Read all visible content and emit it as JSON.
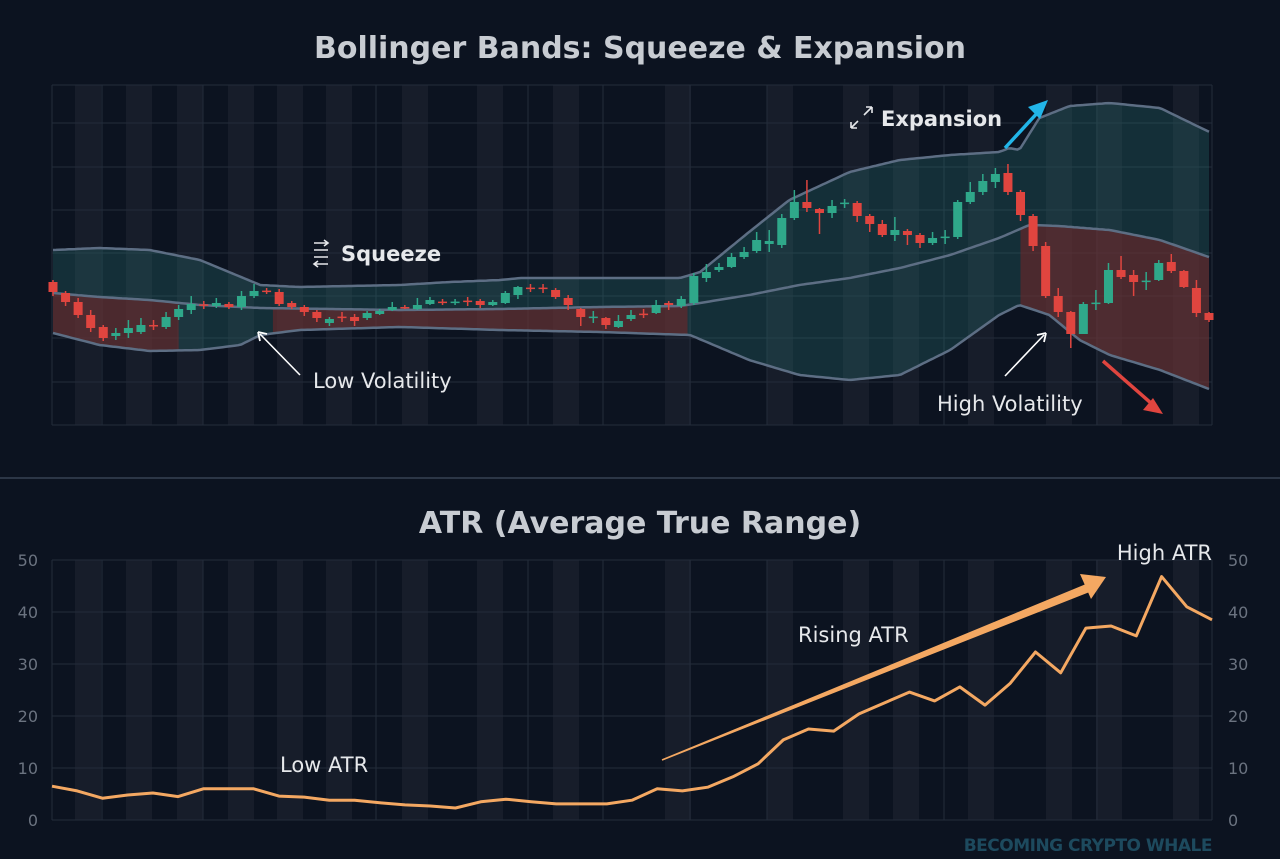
{
  "colors": {
    "background": "#0c1320",
    "bull": "#2fa88a",
    "bear": "#e0453f",
    "band_line": "#5d6e84",
    "atr_line": "#f4a862",
    "expansion_arrow": "#22b5e8",
    "down_arrow": "#e0453f",
    "watermark": "#1d4a5e"
  },
  "chart_data": [
    {
      "type": "candlestick",
      "title": "Bollinger Bands: Squeeze & Expansion",
      "ylim": [
        2.5,
        172.5
      ],
      "grid": true,
      "annotations": {
        "squeeze": "Squeeze",
        "low_volatility": "Low Volatility",
        "expansion": "Expansion",
        "high_volatility": "High Volatility"
      },
      "icons": {
        "squeeze": "compress-arrows-icon",
        "expansion": "expand-arrows-icon"
      },
      "candles_ohlc": [
        [
          74,
          75,
          67,
          69
        ],
        [
          68.5,
          69.5,
          62,
          64
        ],
        [
          64,
          66,
          56,
          57.5
        ],
        [
          57.5,
          60,
          49,
          51
        ],
        [
          51.5,
          52.5,
          44.5,
          46
        ],
        [
          47,
          51,
          45,
          48.5
        ],
        [
          48.5,
          55,
          46,
          51
        ],
        [
          49,
          56,
          48,
          52.5
        ],
        [
          52.5,
          55,
          50,
          52
        ],
        [
          51.5,
          59,
          50.5,
          56.5
        ],
        [
          56.5,
          62.5,
          55,
          60.5
        ],
        [
          60,
          67,
          58,
          63
        ],
        [
          62.8,
          64.5,
          60.5,
          62.3
        ],
        [
          62,
          66,
          61,
          63.5
        ],
        [
          63,
          64,
          60.5,
          61.5
        ],
        [
          61.5,
          69.5,
          60,
          67
        ],
        [
          67,
          73,
          66,
          69.5
        ],
        [
          69.7,
          71,
          68,
          69.3
        ],
        [
          69,
          70.5,
          62,
          63
        ],
        [
          63.5,
          64.5,
          60.5,
          61.5
        ],
        [
          61.5,
          62.5,
          57,
          59
        ],
        [
          59,
          60,
          54,
          56
        ],
        [
          53.5,
          56.5,
          52,
          55.5
        ],
        [
          56.7,
          59,
          54,
          56.3
        ],
        [
          56.5,
          58,
          52,
          54.5
        ],
        [
          56,
          59.5,
          55,
          58.5
        ],
        [
          58,
          60.5,
          57.5,
          59.5
        ],
        [
          60,
          64,
          59.5,
          61.5
        ],
        [
          61.5,
          62.5,
          60.5,
          61
        ],
        [
          60.5,
          66,
          60,
          62.5
        ],
        [
          63,
          66.5,
          62.5,
          65
        ],
        [
          64.2,
          65.5,
          62.5,
          63.8
        ],
        [
          63.8,
          65.5,
          62.5,
          64.2
        ],
        [
          64.7,
          66.5,
          62,
          64.3
        ],
        [
          64.5,
          65.5,
          61,
          62.5
        ],
        [
          62.5,
          65,
          62,
          64
        ],
        [
          63.5,
          69.5,
          63,
          68.5
        ],
        [
          67.5,
          72,
          65.5,
          71.5
        ],
        [
          71.2,
          73,
          69,
          70.8
        ],
        [
          71.2,
          73,
          68.5,
          70.8
        ],
        [
          70,
          71,
          65.5,
          66.5
        ],
        [
          66,
          67.5,
          60,
          62.5
        ],
        [
          60.5,
          61,
          52,
          56.5
        ],
        [
          56.3,
          59.5,
          53.5,
          56.7
        ],
        [
          56,
          56.5,
          50.5,
          52.5
        ],
        [
          51.5,
          57.5,
          51,
          54.5
        ],
        [
          55.5,
          60,
          54.5,
          57.5
        ],
        [
          58.2,
          60.5,
          56,
          57.8
        ],
        [
          58.5,
          65,
          58,
          62.5
        ],
        [
          63.5,
          64.5,
          60,
          62.5
        ],
        [
          62,
          67,
          61,
          65.5
        ],
        [
          63.5,
          78.5,
          62.5,
          77
        ],
        [
          76,
          83,
          74,
          79
        ],
        [
          80,
          83.5,
          79,
          81.5
        ],
        [
          81.5,
          88.5,
          81,
          86.5
        ],
        [
          86.5,
          91.5,
          85.5,
          89
        ],
        [
          89.5,
          99,
          88.5,
          95
        ],
        [
          93,
          100,
          89,
          94.5
        ],
        [
          92.5,
          108,
          91,
          106
        ],
        [
          106,
          120,
          105,
          114
        ],
        [
          114,
          125,
          109,
          111
        ],
        [
          110.5,
          111,
          98,
          108.5
        ],
        [
          108.5,
          115,
          106,
          112
        ],
        [
          113.3,
          115.5,
          111,
          113.7
        ],
        [
          113.5,
          114.5,
          104,
          107
        ],
        [
          107,
          108,
          99,
          103
        ],
        [
          103,
          105,
          96.5,
          97.5
        ],
        [
          97.5,
          106.5,
          94.5,
          100
        ],
        [
          99.5,
          100.5,
          92.5,
          97.5
        ],
        [
          97.5,
          98.5,
          91,
          93.5
        ],
        [
          93.5,
          99,
          92.5,
          96
        ],
        [
          96.3,
          100,
          93,
          96.7
        ],
        [
          96.5,
          115,
          95.5,
          114
        ],
        [
          114,
          124,
          113,
          119
        ],
        [
          119,
          128,
          117.5,
          124.5
        ],
        [
          124,
          131,
          121,
          128
        ],
        [
          128.5,
          133,
          117.5,
          119
        ],
        [
          119,
          120,
          104.5,
          107.5
        ],
        [
          107,
          108,
          89.5,
          92
        ],
        [
          92,
          94,
          66,
          67
        ],
        [
          67,
          71,
          56.5,
          59
        ],
        [
          59,
          59.5,
          41,
          48
        ],
        [
          48,
          64,
          48,
          63
        ],
        [
          63.3,
          70,
          60,
          63.7
        ],
        [
          63.5,
          83.5,
          63,
          80
        ],
        [
          80,
          87,
          75.5,
          76.5
        ],
        [
          77.5,
          80,
          67,
          74
        ],
        [
          74.3,
          79,
          70,
          74.7
        ],
        [
          75,
          85,
          74.5,
          83.5
        ],
        [
          84,
          88,
          78.5,
          79.5
        ],
        [
          79.5,
          80,
          71,
          71.5
        ],
        [
          71,
          75,
          56.5,
          58.5
        ],
        [
          58.5,
          59,
          54,
          55
        ]
      ],
      "bands": {
        "upper": [
          [
            0,
            90
          ],
          [
            3.7,
            91
          ],
          [
            7.7,
            90
          ],
          [
            11.7,
            85
          ],
          [
            16.5,
            72.5
          ],
          [
            19.6,
            71.5
          ],
          [
            27.6,
            72.5
          ],
          [
            31.6,
            74
          ],
          [
            35.6,
            75
          ],
          [
            37.2,
            76
          ],
          [
            43.5,
            76
          ],
          [
            49.9,
            76
          ],
          [
            51.5,
            79
          ],
          [
            55.4,
            99
          ],
          [
            58.6,
            115
          ],
          [
            63.4,
            129
          ],
          [
            67.4,
            135
          ],
          [
            71.4,
            137.5
          ],
          [
            75.3,
            139
          ],
          [
            76.1,
            141
          ],
          [
            76.9,
            140
          ],
          [
            78.5,
            156
          ],
          [
            80.9,
            162
          ],
          [
            84.1,
            163.5
          ],
          [
            88.1,
            161
          ],
          [
            92.2,
            148.5
          ]
        ],
        "middle": [
          [
            0,
            68.5
          ],
          [
            3.7,
            66.5
          ],
          [
            7.7,
            65
          ],
          [
            11.7,
            62.5
          ],
          [
            16.5,
            61
          ],
          [
            27.6,
            60
          ],
          [
            35.6,
            60.5
          ],
          [
            43.5,
            61.5
          ],
          [
            49.9,
            62
          ],
          [
            51.5,
            63.5
          ],
          [
            55.4,
            67.5
          ],
          [
            59.4,
            72.5
          ],
          [
            63.4,
            76
          ],
          [
            67.4,
            81
          ],
          [
            71.4,
            87.5
          ],
          [
            75.3,
            96
          ],
          [
            77.7,
            102.5
          ],
          [
            80.1,
            102
          ],
          [
            84.1,
            100
          ],
          [
            88.1,
            95
          ],
          [
            92.2,
            86
          ]
        ],
        "lower": [
          [
            0,
            48.5
          ],
          [
            3.7,
            42.5
          ],
          [
            7.7,
            39.5
          ],
          [
            11.7,
            40
          ],
          [
            14.9,
            42.5
          ],
          [
            16.5,
            47.5
          ],
          [
            19.6,
            50
          ],
          [
            27.6,
            51.5
          ],
          [
            35.6,
            50
          ],
          [
            43.5,
            49
          ],
          [
            50.7,
            47.5
          ],
          [
            55.4,
            35
          ],
          [
            59.4,
            27.5
          ],
          [
            63.4,
            25
          ],
          [
            67.4,
            27.5
          ],
          [
            71.4,
            40
          ],
          [
            75.3,
            57.5
          ],
          [
            76.9,
            62.5
          ],
          [
            79.3,
            57.5
          ],
          [
            81.7,
            45
          ],
          [
            84.1,
            37.5
          ],
          [
            88.1,
            30
          ],
          [
            92.2,
            20
          ]
        ]
      },
      "bearish_zones": [
        [
          0,
          10.2
        ],
        [
          17.5,
          50.5
        ],
        [
          77,
          92.2
        ]
      ]
    },
    {
      "type": "line",
      "title": "ATR (Average True Range)",
      "ylim": [
        0,
        50
      ],
      "yticks": [
        "0",
        "10",
        "20",
        "30",
        "40",
        "50"
      ],
      "grid": true,
      "annotations": {
        "low": "Low ATR",
        "rising": "Rising ATR",
        "high": "High ATR"
      },
      "values": [
        6.5,
        5.6,
        4.2,
        4.8,
        5.2,
        4.5,
        6,
        6,
        6,
        4.6,
        4.4,
        3.8,
        3.8,
        3.3,
        2.9,
        2.7,
        2.3,
        3.5,
        4,
        3.5,
        3.1,
        3.1,
        3.1,
        3.8,
        6,
        5.6,
        6.3,
        8.3,
        10.8,
        15.4,
        17.5,
        17.1,
        20.4,
        22.5,
        24.6,
        22.9,
        25.6,
        22.1,
        26.3,
        32.3,
        28.3,
        36.9,
        37.3,
        35.4,
        46.8,
        41,
        38.5
      ]
    }
  ],
  "watermark": "BECOMING CRYPTO WHALE"
}
